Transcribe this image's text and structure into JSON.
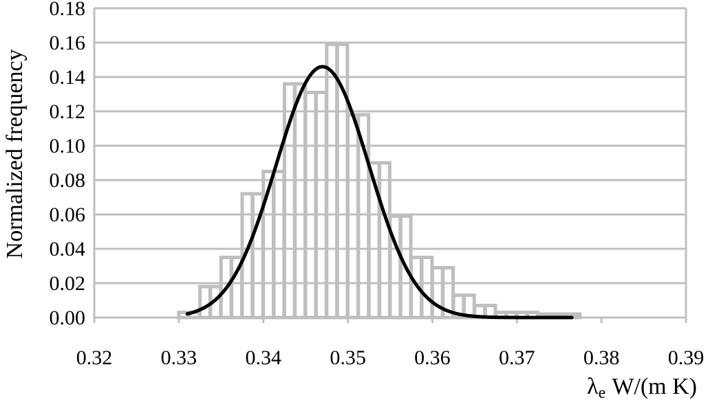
{
  "chart_data": {
    "type": "bar",
    "title": "",
    "xlabel": "λe W/(m K)",
    "xlabel_symbol": "λ",
    "xlabel_subscript": "e",
    "xlabel_unit": "W/(m K)",
    "ylabel": "Normalized frequency",
    "xlim": [
      0.32,
      0.39
    ],
    "ylim": [
      0,
      0.18
    ],
    "x_ticks": [
      "0.32",
      "0.33",
      "0.34",
      "0.35",
      "0.36",
      "0.37",
      "0.38",
      "0.39"
    ],
    "y_ticks": [
      "0.00",
      "0.02",
      "0.04",
      "0.06",
      "0.08",
      "0.10",
      "0.12",
      "0.14",
      "0.16",
      "0.18"
    ],
    "grid": "horizontal",
    "bin_width": 0.00125,
    "histogram": {
      "bin_starts": [
        0.33,
        0.3312,
        0.3325,
        0.3337,
        0.335,
        0.3362,
        0.3375,
        0.3387,
        0.34,
        0.3412,
        0.3425,
        0.3437,
        0.345,
        0.3462,
        0.3475,
        0.3487,
        0.35,
        0.3512,
        0.3525,
        0.3537,
        0.355,
        0.3562,
        0.3575,
        0.3587,
        0.36,
        0.3612,
        0.3625,
        0.3637,
        0.365,
        0.3662,
        0.3675,
        0.3687,
        0.37,
        0.3712,
        0.3725,
        0.3737,
        0.375,
        0.3762
      ],
      "values": [
        0.003,
        0.003,
        0.018,
        0.018,
        0.035,
        0.035,
        0.072,
        0.072,
        0.085,
        0.085,
        0.136,
        0.136,
        0.131,
        0.131,
        0.159,
        0.159,
        0.118,
        0.118,
        0.09,
        0.09,
        0.059,
        0.059,
        0.035,
        0.035,
        0.029,
        0.029,
        0.013,
        0.013,
        0.007,
        0.007,
        0.003,
        0.003,
        0.003,
        0.003,
        0.002,
        0.002,
        0.002,
        0.002
      ]
    },
    "fit_curve": {
      "type": "normal",
      "mean": 0.347,
      "peak": 0.146,
      "sigma": 0.0055,
      "x_range": [
        0.331,
        0.3765
      ]
    },
    "colors": {
      "bars": "#bfbfbf",
      "grid": "#bfbfbf",
      "curve": "#000000"
    }
  }
}
